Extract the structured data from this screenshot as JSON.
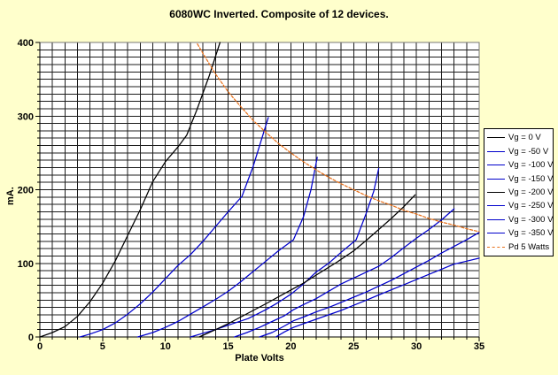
{
  "title": "6080WC Inverted. Composite of 12 devices.",
  "colors": {
    "background": "#FFFFCC",
    "plot_background": "#FFFFFF",
    "gridline": "#1c1c1c",
    "plot_border": "#777777",
    "axis": "#000000",
    "series_blue": "#0000CC",
    "series_black": "#000000",
    "series_orange": "#E8701A"
  },
  "chart_data": {
    "type": "line",
    "title": "6080WC Inverted. Composite of 12 devices.",
    "xlabel": "Plate Volts",
    "ylabel": "mA.",
    "xlim": [
      0,
      35
    ],
    "ylim": [
      0,
      400
    ],
    "x_minor_step": 1,
    "x_major_step": 5,
    "y_minor_step": 10,
    "y_major_step": 100,
    "x_ticks": [
      "0",
      "5",
      "10",
      "15",
      "20",
      "25",
      "30",
      "35"
    ],
    "y_ticks": [
      "0",
      "100",
      "200",
      "300",
      "400"
    ],
    "grid": "on",
    "legend_position": "right",
    "series": [
      {
        "name": "Vg = 0 V",
        "color": "#000000",
        "dash": null,
        "points": [
          [
            0,
            0
          ],
          [
            1,
            6
          ],
          [
            2,
            14
          ],
          [
            3,
            28
          ],
          [
            4,
            48
          ],
          [
            5,
            73
          ],
          [
            6,
            103
          ],
          [
            7,
            138
          ],
          [
            8,
            173
          ],
          [
            9,
            211
          ],
          [
            10,
            238
          ],
          [
            11,
            258
          ],
          [
            11.7,
            274
          ],
          [
            12.5,
            308
          ],
          [
            13.5,
            355
          ],
          [
            14.35,
            400
          ]
        ]
      },
      {
        "name": "Vg = -50 V",
        "color": "#0000CC",
        "dash": null,
        "points": [
          [
            3.2,
            0
          ],
          [
            4,
            4
          ],
          [
            5,
            10
          ],
          [
            6,
            19
          ],
          [
            7,
            31
          ],
          [
            8,
            45
          ],
          [
            9,
            61
          ],
          [
            10,
            79
          ],
          [
            11,
            97
          ],
          [
            12,
            112
          ],
          [
            13,
            130
          ],
          [
            14,
            150
          ],
          [
            15,
            170
          ],
          [
            16.1,
            191
          ],
          [
            17,
            232
          ],
          [
            18.2,
            298
          ]
        ]
      },
      {
        "name": "Vg = -100 V",
        "color": "#0000CC",
        "dash": null,
        "points": [
          [
            7.8,
            0
          ],
          [
            9,
            6
          ],
          [
            10,
            13
          ],
          [
            11,
            21
          ],
          [
            11.7,
            28
          ],
          [
            13,
            41
          ],
          [
            14,
            51
          ],
          [
            15,
            62
          ],
          [
            16,
            75
          ],
          [
            17,
            89
          ],
          [
            18,
            103
          ],
          [
            19,
            117
          ],
          [
            20.2,
            132
          ],
          [
            21,
            163
          ],
          [
            21.6,
            200
          ],
          [
            22.1,
            244
          ]
        ]
      },
      {
        "name": "Vg = -150 V",
        "color": "#0000CC",
        "dash": null,
        "points": [
          [
            12,
            0
          ],
          [
            13,
            5
          ],
          [
            14,
            10
          ],
          [
            15,
            16
          ],
          [
            16.6,
            25
          ],
          [
            18,
            37
          ],
          [
            19,
            47
          ],
          [
            20,
            58
          ],
          [
            21,
            72
          ],
          [
            22,
            88
          ],
          [
            23,
            100
          ],
          [
            24,
            115
          ],
          [
            25.2,
            132
          ],
          [
            26,
            168
          ],
          [
            26.6,
            198
          ],
          [
            27,
            229
          ]
        ]
      },
      {
        "name": "Vg = -200 V",
        "color": "#000000",
        "dash": null,
        "points": [
          [
            12.7,
            0
          ],
          [
            14,
            10
          ],
          [
            15,
            18
          ],
          [
            16,
            27
          ],
          [
            17,
            36
          ],
          [
            18,
            45
          ],
          [
            19.7,
            61
          ],
          [
            21,
            73
          ],
          [
            22,
            84
          ],
          [
            23.7,
            102
          ],
          [
            25,
            117
          ],
          [
            26,
            131
          ],
          [
            27,
            146
          ],
          [
            28,
            161
          ],
          [
            29,
            177
          ],
          [
            29.9,
            193
          ]
        ]
      },
      {
        "name": "Vg = -250 V",
        "color": "#0000CC",
        "dash": null,
        "points": [
          [
            15.5,
            0
          ],
          [
            16.5,
            6
          ],
          [
            17.5,
            13
          ],
          [
            18.5,
            21
          ],
          [
            19.5,
            29
          ],
          [
            20.2,
            37
          ],
          [
            21,
            44
          ],
          [
            22,
            52
          ],
          [
            23,
            62
          ],
          [
            24,
            72
          ],
          [
            25.5,
            84
          ],
          [
            27,
            96
          ],
          [
            28,
            108
          ],
          [
            28.9,
            120
          ],
          [
            30,
            134
          ],
          [
            31,
            146
          ],
          [
            32,
            159
          ],
          [
            33,
            174
          ]
        ]
      },
      {
        "name": "Vg = -300 V",
        "color": "#0000CC",
        "dash": null,
        "points": [
          [
            17.5,
            0
          ],
          [
            18.5,
            6
          ],
          [
            19.5,
            15
          ],
          [
            20.2,
            22
          ],
          [
            21,
            27
          ],
          [
            22,
            34
          ],
          [
            23,
            40
          ],
          [
            24,
            47
          ],
          [
            25,
            54
          ],
          [
            26,
            61
          ],
          [
            27,
            69
          ],
          [
            28,
            77
          ],
          [
            29,
            86
          ],
          [
            30,
            95
          ],
          [
            31,
            104
          ],
          [
            32,
            114
          ],
          [
            33,
            123
          ],
          [
            34,
            132
          ],
          [
            35,
            142
          ]
        ]
      },
      {
        "name": "Vg = -350 V",
        "color": "#0000CC",
        "dash": null,
        "points": [
          [
            18.8,
            0
          ],
          [
            19.5,
            7
          ],
          [
            20.2,
            13
          ],
          [
            21,
            18
          ],
          [
            22,
            24
          ],
          [
            23,
            30
          ],
          [
            24,
            36
          ],
          [
            25,
            43
          ],
          [
            26,
            50
          ],
          [
            27,
            57
          ],
          [
            28,
            64
          ],
          [
            29,
            71
          ],
          [
            30,
            78
          ],
          [
            31,
            85
          ],
          [
            32,
            92
          ],
          [
            33,
            99
          ],
          [
            34,
            103
          ],
          [
            35,
            107
          ]
        ]
      },
      {
        "name": "Pd 5 Watts",
        "color": "#E8701A",
        "dash": "3 2",
        "points": [
          [
            12.55,
            398
          ],
          [
            13,
            385
          ],
          [
            14,
            357
          ],
          [
            15,
            333
          ],
          [
            16,
            313
          ],
          [
            17,
            294
          ],
          [
            18,
            278
          ],
          [
            19,
            263
          ],
          [
            20,
            250
          ],
          [
            21,
            238
          ],
          [
            22,
            227
          ],
          [
            23,
            217
          ],
          [
            24,
            208
          ],
          [
            25,
            200
          ],
          [
            26,
            192
          ],
          [
            27,
            185
          ],
          [
            28,
            179
          ],
          [
            29,
            172
          ],
          [
            30,
            167
          ],
          [
            31,
            161
          ],
          [
            32,
            156
          ],
          [
            33,
            152
          ],
          [
            34,
            147
          ],
          [
            35,
            143
          ]
        ]
      }
    ]
  }
}
